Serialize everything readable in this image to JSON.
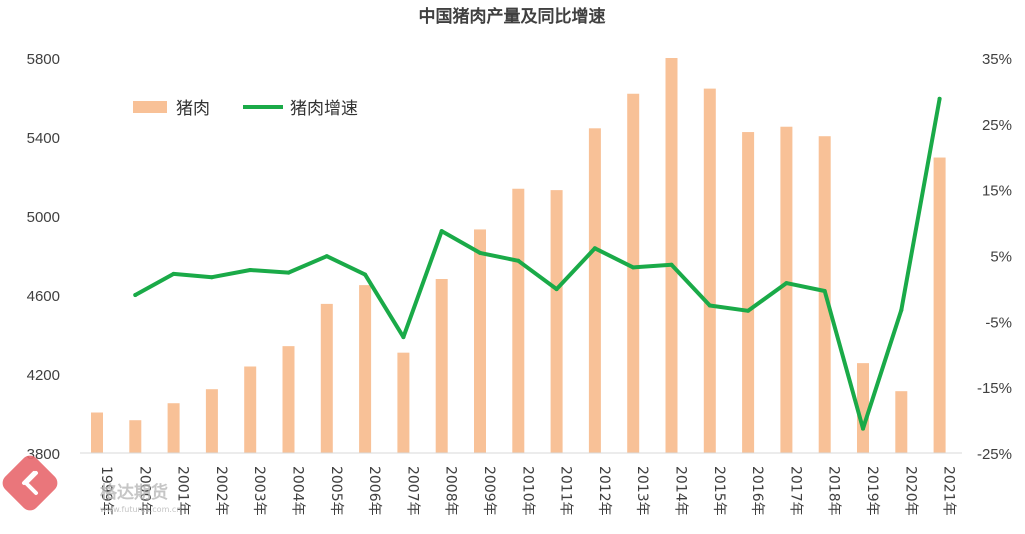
{
  "chart_data": {
    "type": "bar",
    "title": "中国猪肉产量及同比增速",
    "categories": [
      "1999年",
      "2000年",
      "2001年",
      "2002年",
      "2003年",
      "2004年",
      "2005年",
      "2006年",
      "2007年",
      "2008年",
      "2009年",
      "2010年",
      "2011年",
      "2012年",
      "2013年",
      "2014年",
      "2015年",
      "2016年",
      "2017年",
      "2018年",
      "2019年",
      "2020年",
      "2021年"
    ],
    "series": [
      {
        "name": "猪肉",
        "type": "bar",
        "axis": "left",
        "color": "#f8c197",
        "values": [
          4005,
          3966,
          4052,
          4123,
          4238,
          4341,
          4555,
          4650,
          4308,
          4681,
          4932,
          5138,
          5131,
          5444,
          5619,
          5800,
          5645,
          5425,
          5452,
          5404,
          4255,
          4113,
          5296
        ]
      },
      {
        "name": "猪肉增速",
        "type": "line",
        "axis": "right",
        "color": "#1aaa48",
        "values": [
          null,
          -1.0,
          2.2,
          1.7,
          2.8,
          2.4,
          4.9,
          2.1,
          -7.4,
          8.7,
          5.4,
          4.2,
          -0.1,
          6.1,
          3.2,
          3.6,
          -2.6,
          -3.4,
          0.8,
          -0.4,
          -21.3,
          -3.3,
          28.8
        ]
      }
    ],
    "ylim_left": [
      3800,
      5800
    ],
    "yticks_left": [
      "3800",
      "4200",
      "4600",
      "5000",
      "5400",
      "5800"
    ],
    "ylim_right": [
      -25,
      35
    ],
    "yticks_right": [
      "-25%",
      "-15%",
      "-5%",
      "5%",
      "15%",
      "25%",
      "35%"
    ],
    "legend_position": "top-left",
    "grid": false
  },
  "watermark": {
    "text": "格达期货",
    "color": "#e8686d"
  }
}
